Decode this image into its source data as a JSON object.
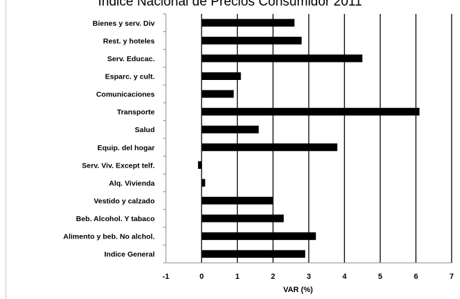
{
  "chart_data": {
    "type": "bar",
    "orientation": "horizontal",
    "title": "Índice Nacional de Precios Consumidor 2011",
    "xlabel": "VAR (%)",
    "ylabel": "",
    "xlim": [
      -1,
      7
    ],
    "xticks": [
      "-1",
      "0",
      "1",
      "2",
      "3",
      "4",
      "5",
      "6",
      "7"
    ],
    "grid": "vertical major gridlines",
    "legend": "none",
    "bar_color": "#000000",
    "categories": [
      "Bienes y serv. Div",
      "Rest. y hoteles",
      "Serv. Educac.",
      "Esparc. y cult.",
      "Comunicaciones",
      "Transporte",
      "Salud",
      "Equip. del hogar",
      "Serv. Viv. Except telf.",
      "Alq. Vivienda",
      "Vestido y calzado",
      "Beb. Alcohol. Y tabaco",
      "Alimento y beb. No alchol.",
      "Indice General"
    ],
    "values": [
      2.6,
      2.8,
      4.5,
      1.1,
      0.9,
      6.1,
      1.6,
      3.8,
      -0.1,
      0.1,
      2.0,
      2.3,
      3.2,
      2.9
    ]
  }
}
